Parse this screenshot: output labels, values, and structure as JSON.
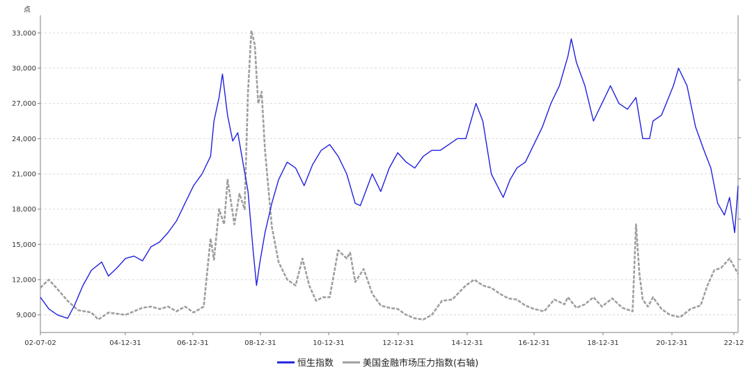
{
  "chart_data": {
    "type": "line",
    "y_unit_label": "点",
    "x_tick_labels": [
      "02-07-02",
      "04-12-31",
      "06-12-31",
      "08-12-31",
      "10-12-31",
      "12-12-31",
      "14-12-31",
      "16-12-31",
      "18-12-31",
      "20-12-31",
      "22-12"
    ],
    "y_left_range": [
      7500,
      34500
    ],
    "y_left_ticks": [
      9000,
      12000,
      15000,
      18000,
      21000,
      24000,
      27000,
      30000,
      33000
    ],
    "y_left_tick_labels": [
      "9,000",
      "12,000",
      "15,000",
      "18,000",
      "21,000",
      "24,000",
      "27,000",
      "30,000",
      "33,000"
    ],
    "grid": "horizontal dashed",
    "legend_position": "bottom",
    "series": [
      {
        "name": "恒生指数",
        "axis": "left",
        "color": "#1f1fe0",
        "style": "solid",
        "x": [
          2002.5,
          2002.75,
          2003.0,
          2003.3,
          2003.5,
          2003.75,
          2004.0,
          2004.3,
          2004.5,
          2004.75,
          2005.0,
          2005.25,
          2005.5,
          2005.75,
          2006.0,
          2006.25,
          2006.5,
          2006.75,
          2007.0,
          2007.25,
          2007.5,
          2007.6,
          2007.75,
          2007.85,
          2008.0,
          2008.15,
          2008.3,
          2008.45,
          2008.6,
          2008.75,
          2008.85,
          2008.95,
          2009.1,
          2009.3,
          2009.5,
          2009.75,
          2010.0,
          2010.25,
          2010.5,
          2010.75,
          2011.0,
          2011.25,
          2011.5,
          2011.75,
          2011.9,
          2012.25,
          2012.5,
          2012.75,
          2013.0,
          2013.25,
          2013.5,
          2013.75,
          2014.0,
          2014.25,
          2014.5,
          2014.75,
          2015.0,
          2015.3,
          2015.5,
          2015.75,
          2016.1,
          2016.3,
          2016.5,
          2016.75,
          2017.0,
          2017.25,
          2017.5,
          2017.75,
          2018.0,
          2018.1,
          2018.25,
          2018.5,
          2018.75,
          2019.0,
          2019.25,
          2019.5,
          2019.75,
          2020.0,
          2020.2,
          2020.4,
          2020.5,
          2020.75,
          2021.1,
          2021.25,
          2021.5,
          2021.75,
          2022.0,
          2022.2,
          2022.4,
          2022.6,
          2022.75,
          2022.9,
          2023.0
        ],
        "values": [
          10500,
          9500,
          9000,
          8700,
          9800,
          11500,
          12800,
          13500,
          12300,
          13000,
          13800,
          14000,
          13600,
          14800,
          15200,
          16000,
          17000,
          18500,
          20000,
          21000,
          22500,
          25500,
          27500,
          29500,
          26000,
          23800,
          24500,
          22000,
          19500,
          14500,
          11500,
          13500,
          16000,
          18500,
          20500,
          22000,
          21500,
          20000,
          21800,
          23000,
          23500,
          22500,
          21000,
          18500,
          18300,
          21000,
          19500,
          21500,
          22800,
          22000,
          21500,
          22500,
          23000,
          23000,
          23500,
          24000,
          24000,
          27000,
          25500,
          21000,
          19000,
          20500,
          21500,
          22000,
          23500,
          25000,
          27000,
          28500,
          31000,
          32500,
          30500,
          28500,
          25500,
          27000,
          28500,
          27000,
          26500,
          27500,
          24000,
          24000,
          25500,
          26000,
          28500,
          30000,
          28500,
          25000,
          23000,
          21500,
          18500,
          17500,
          19000,
          16000,
          20000
        ]
      },
      {
        "name": "美国金融市场压力指数(右轴)",
        "axis": "right",
        "color": "#9e9e9e",
        "style": "dashed",
        "x": [
          2002.5,
          2002.6,
          2002.75,
          2003.0,
          2003.3,
          2003.6,
          2004.0,
          2004.2,
          2004.5,
          2004.75,
          2005.0,
          2005.25,
          2005.5,
          2005.75,
          2006.0,
          2006.25,
          2006.5,
          2006.75,
          2007.0,
          2007.3,
          2007.5,
          2007.6,
          2007.75,
          2007.9,
          2008.0,
          2008.2,
          2008.35,
          2008.5,
          2008.6,
          2008.7,
          2008.8,
          2008.9,
          2009.0,
          2009.1,
          2009.3,
          2009.5,
          2009.75,
          2010.0,
          2010.2,
          2010.4,
          2010.6,
          2010.8,
          2011.0,
          2011.25,
          2011.5,
          2011.6,
          2011.75,
          2012.0,
          2012.25,
          2012.5,
          2012.75,
          2013.0,
          2013.25,
          2013.5,
          2013.75,
          2014.0,
          2014.3,
          2014.6,
          2015.0,
          2015.25,
          2015.5,
          2015.75,
          2016.0,
          2016.25,
          2016.5,
          2016.75,
          2017.0,
          2017.3,
          2017.6,
          2017.9,
          2018.0,
          2018.25,
          2018.5,
          2018.75,
          2019.0,
          2019.3,
          2019.6,
          2019.9,
          2020.0,
          2020.1,
          2020.2,
          2020.35,
          2020.5,
          2020.75,
          2021.0,
          2021.3,
          2021.6,
          2021.9,
          2022.1,
          2022.3,
          2022.5,
          2022.75,
          2023.0
        ],
        "values": [
          11300,
          11600,
          12000,
          11200,
          10200,
          9400,
          9200,
          8600,
          9200,
          9100,
          9000,
          9300,
          9600,
          9700,
          9500,
          9700,
          9300,
          9700,
          9200,
          9700,
          15500,
          13700,
          18000,
          16700,
          20500,
          16700,
          19300,
          18000,
          28000,
          33200,
          32000,
          27000,
          28000,
          23000,
          16500,
          13500,
          12000,
          11500,
          13800,
          11500,
          10200,
          10500,
          10500,
          14500,
          13800,
          14300,
          11800,
          12900,
          10800,
          9800,
          9600,
          9500,
          9000,
          8700,
          8600,
          9000,
          10200,
          10300,
          11500,
          12000,
          11500,
          11300,
          10800,
          10400,
          10300,
          9800,
          9500,
          9300,
          10300,
          9900,
          10500,
          9600,
          9900,
          10500,
          9700,
          10400,
          9600,
          9300,
          16700,
          12500,
          10300,
          9700,
          10500,
          9500,
          9000,
          8800,
          9500,
          9800,
          11500,
          12800,
          13000,
          13800,
          12500
        ]
      }
    ]
  },
  "legend": {
    "item1_label": "恒生指数",
    "item2_label": "美国金融市场压力指数(右轴)"
  },
  "colors": {
    "blue": "#1f1fe0",
    "gray": "#9e9e9e",
    "grid": "#d9d9d9",
    "axis": "#7f7f7f"
  }
}
